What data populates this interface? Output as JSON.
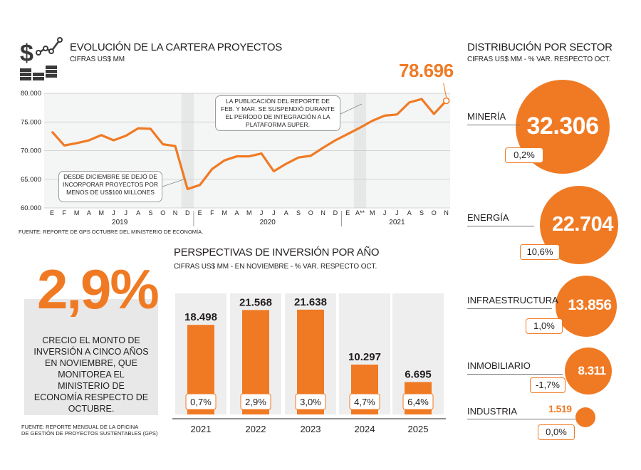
{
  "line_chart": {
    "title": "EVOLUCIÓN DE LA CARTERA PROYECTOS",
    "subtitle": "CIFRAS US$ MM",
    "last_value_label": "78.696",
    "callout_top": "LA PUBLICACIÓN DEL REPORTE DE FEB. Y MAR. SE SUSPENDIÓ DURANTE EL PERÍODO DE INTEGRACIÓN A LA PLATAFORMA SUPER.",
    "callout_bottom": "DESDE DICIEMBRE SE DEJÓ DE INCORPORAR PROYECTOS POR MENOS DE US$100 MILLONES",
    "source": "FUENTE: REPORTE DE GPS OCTUBRE DEL MINISTERIO DE ECONOMÍA."
  },
  "bar_section": {
    "title": "PERSPECTIVAS DE INVERSIÓN POR AÑO",
    "subtitle": "CIFRAS US$ MM - EN NOVIEMBRE -  % VAR. RESPECTO OCT."
  },
  "highlight": {
    "big_number": "2,9%",
    "description": "CRECIO EL MONTO DE INVERSIÓN A CINCO AÑOS EN NOVIEMBRE, QUE MONITOREA EL MINISTERIO DE ECONOMÍA RESPECTO DE OCTUBRE.",
    "source_line1": "FUENTE: REPORTE MENSUAL DE LA OFICINA",
    "source_line2": "DE GESTIÓN DE PROYECTOS SUSTENTABLES (GPS)"
  },
  "sector_section": {
    "title": "DISTRIBUCIÓN  POR SECTOR",
    "subtitle": "CIFRAS US$ MM - % VAR. RESPECTO OCT."
  },
  "colors": {
    "accent": "#f07a24",
    "grey_band": "#e6e8e8",
    "line": "#f07a24"
  },
  "icon": "dollar-chart-coins-icon",
  "chart_data": [
    {
      "type": "line",
      "title": "EVOLUCIÓN DE LA CARTERA PROYECTOS",
      "ylabel": "CIFRAS US$ MM",
      "ylim": [
        60000,
        80000
      ],
      "yticks": [
        "60.000",
        "65.000",
        "70.000",
        "75.000",
        "80.000"
      ],
      "xtick_labels": [
        "E",
        "F",
        "M",
        "A",
        "M",
        "J",
        "J",
        "A",
        "S",
        "O",
        "N",
        "D",
        "E",
        "F",
        "M",
        "A",
        "M",
        "J",
        "J",
        "A",
        "S",
        "O",
        "N",
        "D",
        "E",
        "A**",
        "M",
        "J",
        "J",
        "A",
        "S",
        "O",
        "N"
      ],
      "year_labels": [
        "2019",
        "2020",
        "2021"
      ],
      "values": [
        73300,
        70900,
        71300,
        71800,
        72700,
        71800,
        72600,
        73900,
        73800,
        71100,
        70800,
        63300,
        64000,
        66800,
        68300,
        69000,
        69000,
        69500,
        66400,
        67700,
        68800,
        69100,
        70500,
        71800,
        72900,
        74000,
        75200,
        76100,
        76300,
        78400,
        79000,
        76400,
        78696
      ],
      "shaded_periods": [
        "D 2019",
        "D 2020 - A** 2021"
      ]
    },
    {
      "type": "bar",
      "title": "PERSPECTIVAS DE INVERSIÓN POR AÑO",
      "categories": [
        "2021",
        "2022",
        "2023",
        "2024",
        "2025"
      ],
      "values": [
        18498,
        21568,
        21638,
        10297,
        6695
      ],
      "value_labels": [
        "18.498",
        "21.568",
        "21.638",
        "10.297",
        "6.695"
      ],
      "var_labels": [
        "0,7%",
        "2,9%",
        "3,0%",
        "4,7%",
        "6,4%"
      ]
    },
    {
      "type": "bubble",
      "title": "DISTRIBUCIÓN  POR SECTOR",
      "categories": [
        "MINERÍA",
        "ENERGÍA",
        "INFRAESTRUCTURA",
        "INMOBILIARIO",
        "INDUSTRIA"
      ],
      "values": [
        32306,
        22704,
        13856,
        8311,
        1519
      ],
      "value_labels": [
        "32.306",
        "22.704",
        "13.856",
        "8.311",
        "1.519"
      ],
      "var_labels": [
        "0,2%",
        "10,6%",
        "1,0%",
        "-1,7%",
        "0,0%"
      ]
    }
  ]
}
